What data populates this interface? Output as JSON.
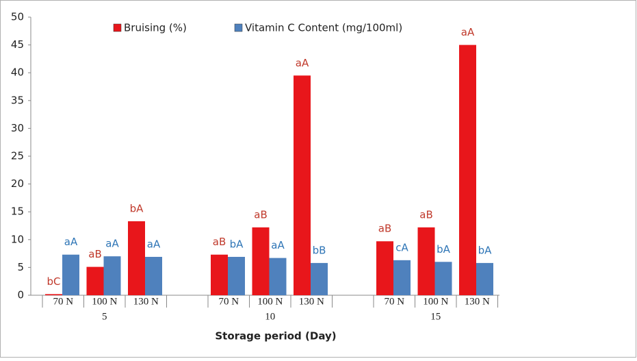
{
  "chart_data": {
    "type": "bar",
    "xlabel": "Storage period (Day)",
    "categories": [
      "70 N",
      "100 N",
      "130 N",
      "70 N",
      "100 N",
      "130 N",
      "70 N",
      "100 N",
      "130 N"
    ],
    "group_labels": [
      "5",
      "10",
      "15"
    ],
    "series": [
      {
        "name": "Bruising (%)",
        "color": "#e8161b",
        "label_color": "#c0392b",
        "values": [
          0.2,
          5.1,
          13.3,
          7.3,
          12.2,
          39.5,
          9.7,
          12.2,
          45
        ],
        "letters": [
          "bC",
          "aB",
          "bA",
          "aB",
          "aB",
          "aA",
          "aB",
          "aB",
          "aA"
        ]
      },
      {
        "name": "Vitamin C Content (mg/100ml)",
        "color": "#4f81bd",
        "label_color": "#2e75b6",
        "values": [
          7.3,
          7.0,
          6.9,
          6.9,
          6.7,
          5.8,
          6.3,
          6.0,
          5.8
        ],
        "letters": [
          "aA",
          "aA",
          "aA",
          "bA",
          "aA",
          "bB",
          "cA",
          "bA",
          "bA"
        ]
      }
    ],
    "ylim": [
      0,
      50
    ],
    "yticks": [
      0,
      5,
      10,
      15,
      20,
      25,
      30,
      35,
      40,
      45,
      50
    ],
    "grid": false,
    "legend": "top"
  }
}
